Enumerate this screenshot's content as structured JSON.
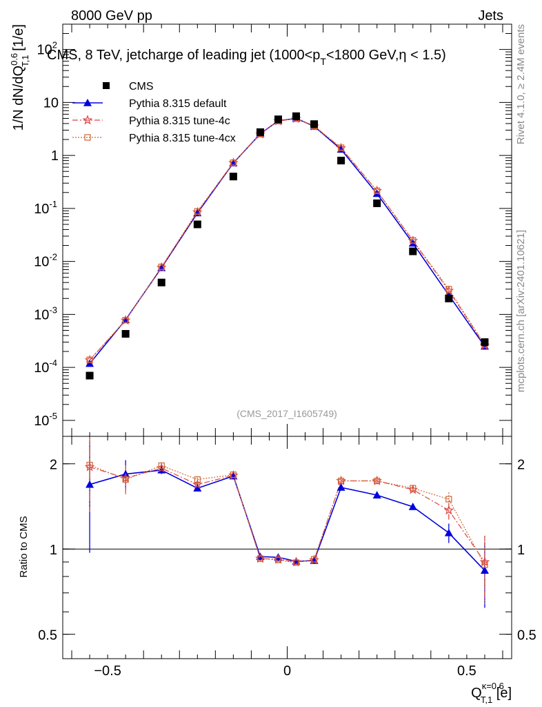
{
  "header": {
    "left_label": "8000 GeV pp",
    "right_label": "Jets"
  },
  "title_line": "CMS, 8 TeV, jetcharge of leading jet (1000<p",
  "title_sub": "T",
  "title_rest": "<1800 GeV,η < 1.5)",
  "side_labels": {
    "rivet": "Rivet 4.1.0, ≥ 2.4M events",
    "mcplots": "mcplots.cern.ch [arXiv:2401.10621]"
  },
  "analysis_tag": "(CMS_2017_I1605749)",
  "y_axis_top_label": "1/N dN/dQ",
  "y_axis_top_sup": "0.6",
  "y_axis_top_sub": "T,1",
  "y_axis_top_unit": " [1/e]",
  "y_axis_bottom_label": "Ratio to CMS",
  "x_axis_label_main": "Q",
  "x_axis_label_sup": "κ=0.6",
  "x_axis_label_sub": "T,1",
  "x_axis_label_unit": " [e]",
  "colors": {
    "data": "#000000",
    "default": "#0000dd",
    "tune4c": "#dd4444",
    "tune4cx": "#cc6633"
  },
  "legend": [
    {
      "key": "data",
      "label": "CMS"
    },
    {
      "key": "default",
      "label": "Pythia 8.315 default"
    },
    {
      "key": "tune4c",
      "label": "Pythia 8.315 tune-4c"
    },
    {
      "key": "tune4cx",
      "label": "Pythia 8.315 tune-4cx"
    }
  ],
  "chart_data": [
    {
      "type": "scatter",
      "panel": "main",
      "yscale": "log",
      "xlim": [
        -0.625,
        0.625
      ],
      "ylim": [
        5e-06,
        300
      ],
      "ytick_labels": [
        "10^{-5}",
        "10^{-4}",
        "10^{-3}",
        "10^{-2}",
        "10^{-1}",
        "1",
        "10",
        "10^{2}"
      ],
      "ytick_values": [
        1e-05,
        0.0001,
        0.001,
        0.01,
        0.1,
        1,
        10,
        100
      ],
      "x": [
        -0.55,
        -0.45,
        -0.35,
        -0.25,
        -0.15,
        -0.075,
        -0.025,
        0.025,
        0.075,
        0.15,
        0.25,
        0.35,
        0.45,
        0.55
      ],
      "series": [
        {
          "name": "CMS",
          "key": "data",
          "values": [
            7e-05,
            0.00043,
            0.004,
            0.05,
            0.4,
            2.75,
            4.8,
            5.5,
            3.9,
            0.8,
            0.125,
            0.0155,
            0.002,
            0.0003
          ]
        },
        {
          "name": "Pythia 8.315 default",
          "key": "default",
          "values": [
            0.000118,
            0.00079,
            0.0076,
            0.082,
            0.72,
            2.55,
            4.5,
            5.0,
            3.55,
            1.3,
            0.19,
            0.022,
            0.0023,
            0.00025
          ]
        },
        {
          "name": "Pythia 8.315 tune-4c",
          "key": "tune4c",
          "values": [
            0.000137,
            0.00077,
            0.0077,
            0.085,
            0.725,
            2.52,
            4.45,
            4.95,
            3.55,
            1.38,
            0.215,
            0.0245,
            0.0028,
            0.00026
          ]
        },
        {
          "name": "Pythia 8.315 tune-4cx",
          "key": "tune4cx",
          "values": [
            0.000139,
            0.00078,
            0.0079,
            0.088,
            0.73,
            2.55,
            4.48,
            4.98,
            3.6,
            1.4,
            0.215,
            0.025,
            0.003,
            0.00027
          ]
        }
      ]
    },
    {
      "type": "scatter",
      "panel": "ratio",
      "yscale": "log",
      "xlim": [
        -0.625,
        0.625
      ],
      "ylim": [
        0.41,
        2.5
      ],
      "ytick_labels": [
        "0.5",
        "1",
        "2"
      ],
      "ytick_values": [
        0.5,
        1,
        2
      ],
      "xtick_labels": [
        "−0.5",
        "0",
        "0.5"
      ],
      "xtick_values": [
        -0.5,
        0,
        0.5
      ],
      "reference": 1,
      "x": [
        -0.55,
        -0.45,
        -0.35,
        -0.25,
        -0.15,
        -0.075,
        -0.025,
        0.025,
        0.075,
        0.15,
        0.25,
        0.35,
        0.45,
        0.55
      ],
      "series": [
        {
          "name": "Pythia 8.315 default",
          "key": "default",
          "values": [
            1.69,
            1.84,
            1.9,
            1.64,
            1.81,
            0.94,
            0.935,
            0.905,
            0.91,
            1.65,
            1.55,
            1.41,
            1.14,
            0.84
          ],
          "err": [
            0.72,
            0.22,
            0.06,
            0.03,
            0.03,
            0.01,
            0.01,
            0.01,
            0.01,
            0.02,
            0.02,
            0.03,
            0.09,
            0.22
          ]
        },
        {
          "name": "Pythia 8.315 tune-4c",
          "key": "tune4c",
          "values": [
            1.95,
            1.78,
            1.93,
            1.69,
            1.82,
            0.925,
            0.92,
            0.9,
            0.915,
            1.74,
            1.74,
            1.62,
            1.37,
            0.9
          ],
          "err": [
            0.6,
            0.2,
            0.06,
            0.03,
            0.03,
            0.01,
            0.01,
            0.01,
            0.01,
            0.02,
            0.02,
            0.03,
            0.1,
            0.22
          ]
        },
        {
          "name": "Pythia 8.315 tune-4cx",
          "key": "tune4cx",
          "values": [
            1.98,
            1.76,
            1.97,
            1.76,
            1.83,
            0.925,
            0.915,
            0.895,
            0.92,
            1.74,
            1.74,
            1.64,
            1.5,
            0.88
          ],
          "err": [
            0.5,
            0.2,
            0.06,
            0.03,
            0.03,
            0.01,
            0.01,
            0.01,
            0.01,
            0.02,
            0.02,
            0.03,
            0.1,
            0.24
          ]
        }
      ]
    }
  ]
}
